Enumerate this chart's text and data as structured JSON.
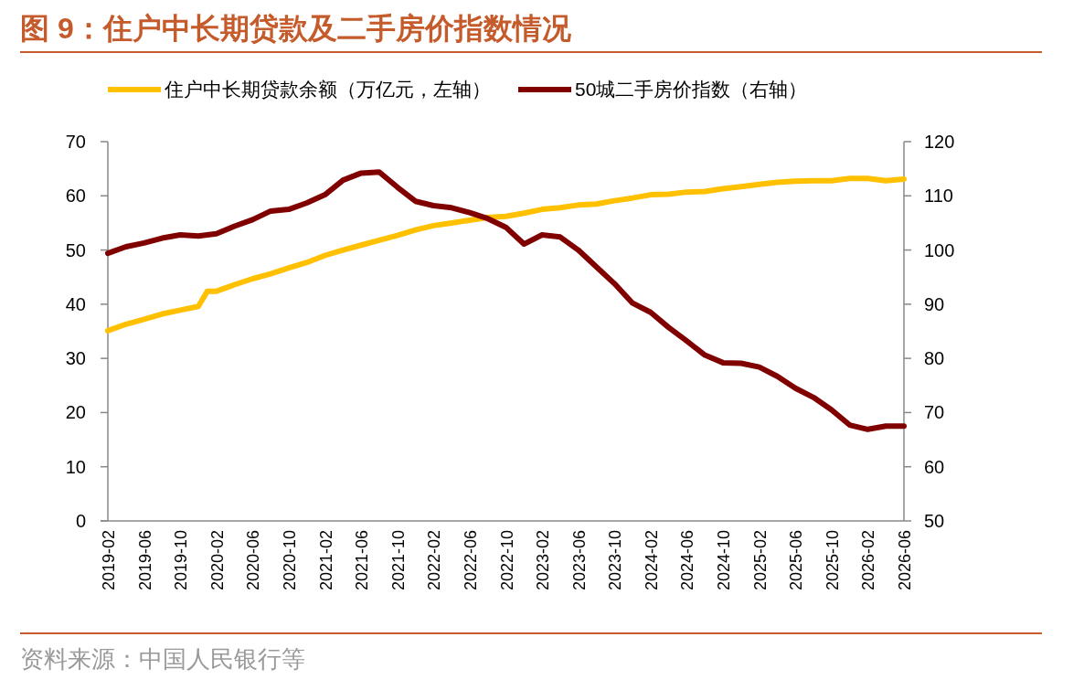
{
  "chart_data": {
    "type": "line",
    "title": "图 9：住户中长期贷款及二手房价指数情况",
    "annotations": [
      "资料来源：中国人民银行等"
    ],
    "x": [
      "2019-02",
      "2019-04",
      "2019-06",
      "2019-08",
      "2019-10",
      "2019-12",
      "2020-01",
      "2020-02",
      "2020-04",
      "2020-06",
      "2020-08",
      "2020-10",
      "2020-12",
      "2021-02",
      "2021-04",
      "2021-06",
      "2021-08",
      "2021-10",
      "2021-12",
      "2022-02",
      "2022-04",
      "2022-06",
      "2022-08",
      "2022-10",
      "2022-12",
      "2023-02",
      "2023-04",
      "2023-06",
      "2023-08",
      "2023-10",
      "2023-12",
      "2024-02",
      "2024-04",
      "2024-06",
      "2024-08",
      "2024-10",
      "2024-12",
      "2025-02",
      "2025-04",
      "2025-06",
      "2025-08",
      "2025-10",
      "2025-12",
      "2026-02",
      "2026-04",
      "2026-06"
    ],
    "series": [
      {
        "name": "住户中长期贷款余额（万亿元，左轴）",
        "color": "#ffc000",
        "values": [
          35.1,
          36.3,
          37.2,
          38.2,
          38.9,
          39.6,
          42.4,
          42.4,
          43.6,
          44.7,
          45.6,
          46.7,
          47.7,
          49.0,
          50.0,
          50.9,
          51.8,
          52.7,
          53.7,
          54.5,
          55.0,
          55.5,
          56.0,
          56.2,
          56.8,
          57.5,
          57.8,
          58.3,
          58.5,
          59.1,
          59.6,
          60.2,
          60.3,
          60.7,
          60.8,
          61.3,
          61.7,
          62.1,
          62.5,
          62.7,
          62.8,
          62.8,
          63.2,
          63.2,
          62.8,
          63.1
        ]
      },
      {
        "name": "50城二手房价指数（右轴）",
        "color": "#800000",
        "axis": "y2",
        "values": [
          99.4,
          100.6,
          101.3,
          102.2,
          102.8,
          102.6,
          102.8,
          103.0,
          104.4,
          105.6,
          107.2,
          107.5,
          108.7,
          110.2,
          112.9,
          114.2,
          114.4,
          111.6,
          109.0,
          108.2,
          107.8,
          106.9,
          105.8,
          104.2,
          101.1,
          102.8,
          102.4,
          100.0,
          96.9,
          93.8,
          90.2,
          88.5,
          85.7,
          83.2,
          80.6,
          79.2,
          79.1,
          78.4,
          76.7,
          74.5,
          72.8,
          70.5,
          67.7,
          66.9,
          67.5,
          67.5
        ]
      }
    ],
    "xlim": [
      "2019-02",
      "2026-06"
    ],
    "xticks": [
      "2019-02",
      "2019-06",
      "2019-10",
      "2020-02",
      "2020-06",
      "2020-10",
      "2021-02",
      "2021-06",
      "2021-10",
      "2022-02",
      "2022-06",
      "2022-10",
      "2023-02",
      "2023-06",
      "2023-10",
      "2024-02",
      "2024-06",
      "2024-10",
      "2025-02",
      "2025-06",
      "2025-10",
      "2026-02",
      "2026-06"
    ],
    "ylim": [
      0,
      70
    ],
    "yticks": [
      0,
      10,
      20,
      30,
      40,
      50,
      60,
      70
    ],
    "y2lim": [
      50,
      120
    ],
    "y2ticks": [
      50,
      60,
      70,
      80,
      90,
      100,
      110,
      120
    ],
    "legend": "top",
    "grid": false,
    "marker": "none",
    "line_style": "solid"
  }
}
